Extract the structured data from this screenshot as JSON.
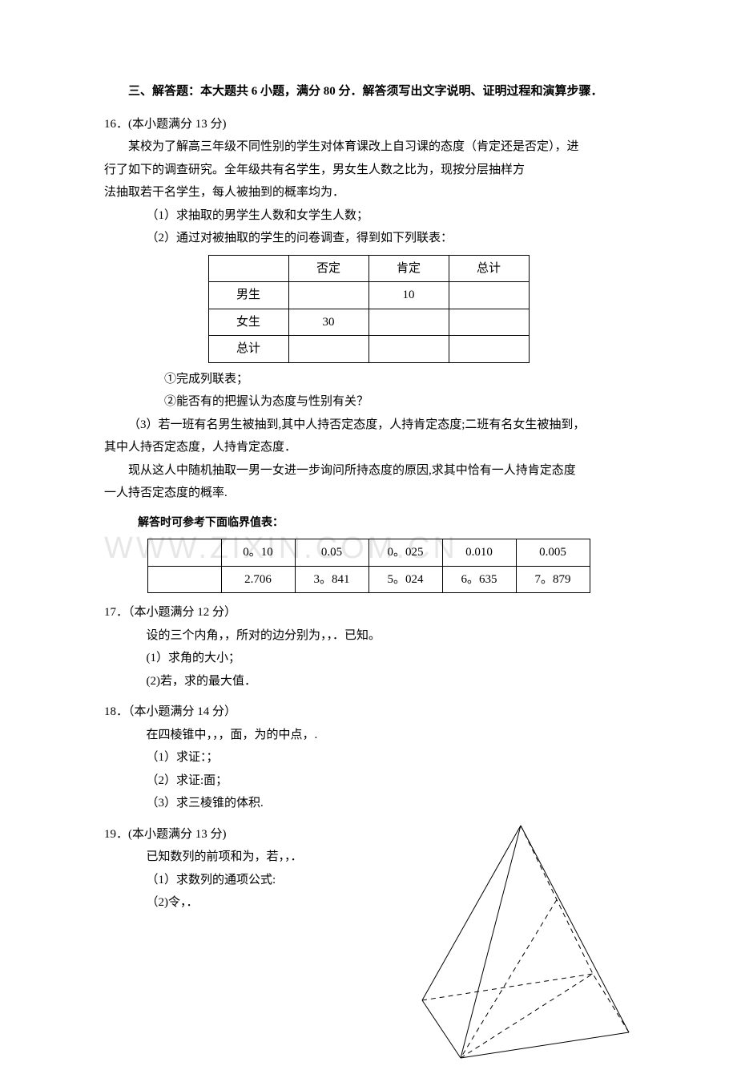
{
  "section_title": "三、解答题：本大题共 6 小题，满分 80 分．解答须写出文字说明、证明过程和演算步骤．",
  "q16": {
    "num": "16．",
    "score": "(本小题满分 13 分)",
    "p1": "某校为了解高三年级不同性别的学生对体育课改上自习课的态度（肯定还是否定），进",
    "p2": "行了如下的调查研究。全年级共有名学生，男女生人数之比为，现按分层抽样方",
    "p3": "法抽取若干名学生，每人被抽到的概率均为．",
    "s1": "（1）求抽取的男学生人数和女学生人数；",
    "s2": "（2）通过对被抽取的学生的问卷调查，得到如下列联表：",
    "tbl": {
      "h": [
        "",
        "否定",
        "肯定",
        "总计"
      ],
      "r1": [
        "男生",
        "",
        "10",
        ""
      ],
      "r2": [
        "女生",
        "30",
        "",
        ""
      ],
      "r3": [
        "总计",
        "",
        "",
        ""
      ]
    },
    "s2a": "①完成列联表；",
    "s2b": "②能否有的把握认为态度与性别有关？",
    "s3a": "（3）若一班有名男生被抽到,其中人持否定态度，人持肯定态度;二班有名女生被抽到，",
    "s3b": "其中人持否定态度，人持肯定态度．",
    "s3c": "现从这人中随机抽取一男一女进一步询问所持态度的原因,求其中恰有一人持肯定态度",
    "s3d": "一人持否定态度的概率.",
    "note": "解答时可参考下面临界值表：",
    "tbl2": {
      "r1": [
        "",
        "0。10",
        "0.05",
        "0。025",
        "0.010",
        "0.005"
      ],
      "r2": [
        "",
        "2.706",
        "3。841",
        "5。024",
        "6。635",
        "7。879"
      ]
    }
  },
  "q17": {
    "num": "17．",
    "score": "（本小题满分 12 分）",
    "p1": "设的三个内角，，所对的边分别为，，．已知。",
    "s1": "(1）求角的大小；",
    "s2": "(2)若，求的最大值．"
  },
  "q18": {
    "num": "18．",
    "score": "（本小题满分 14 分）",
    "p1": "在四棱锥中，，，面，为的中点，.",
    "s1": "（1）求证：；",
    "s2": "（2）求证:面；",
    "s3": "（3）求三棱锥的体积."
  },
  "q19": {
    "num": "19．",
    "score": "(本小题满分 13 分)",
    "p1": "已知数列的前项和为，若，，．",
    "s1": "（1）求数列的通项公式:",
    "s2": "（2)令，．"
  },
  "watermark": "WWW.ZIXIN.COM.CN",
  "pyramid": {
    "stroke": "#000000",
    "stroke_width": 1,
    "dash": "6,5"
  }
}
